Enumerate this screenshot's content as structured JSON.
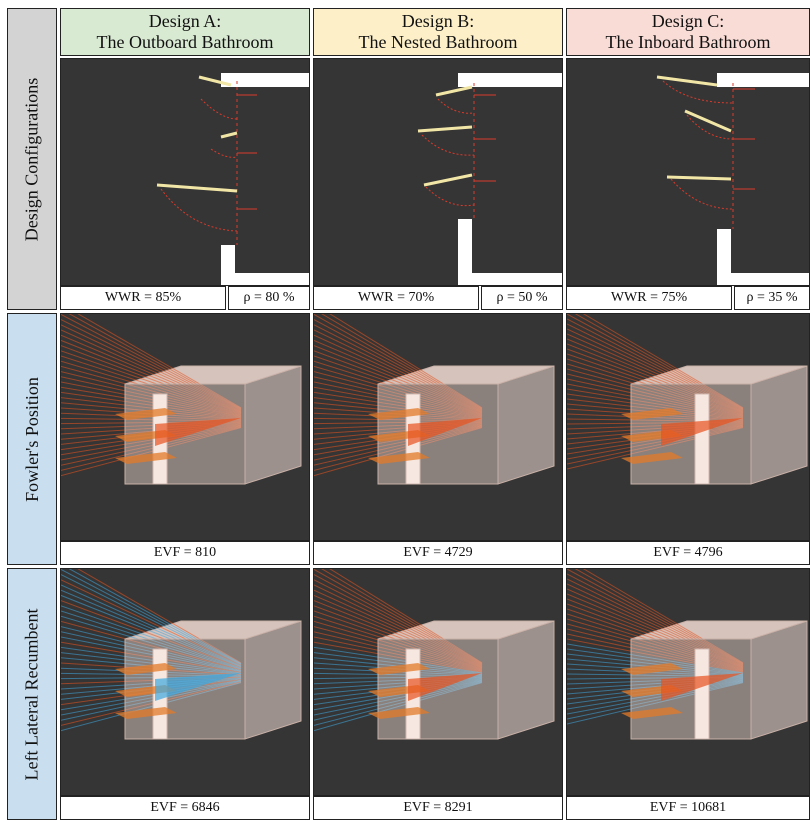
{
  "columns": [
    {
      "line1": "Design A:",
      "line2": "The Outboard Bathroom",
      "color": "#d9ead3"
    },
    {
      "line1": "Design B:",
      "line2": "The Nested Bathroom",
      "color": "#fdf0c9"
    },
    {
      "line1": "Design C:",
      "line2": "The Inboard Bathroom",
      "color": "#f9dcd6"
    }
  ],
  "rows": [
    {
      "label": "Design Configurations",
      "color": "#d3d3d3"
    },
    {
      "label": "Fowler's Position",
      "color": "#c9dff0"
    },
    {
      "label": "Left Lateral Recumbent",
      "color": "#c9dff0"
    }
  ],
  "config_captions": [
    {
      "wwr": "WWR = 85%",
      "rho": "ρ = 80 %"
    },
    {
      "wwr": "WWR = 70%",
      "rho": "ρ = 50 %"
    },
    {
      "wwr": "WWR = 75%",
      "rho": "ρ = 35 %"
    }
  ],
  "fowler_captions": [
    "EVF = 810",
    "EVF = 4729",
    "EVF = 4796"
  ],
  "lateral_captions": [
    "EVF = 6846",
    "EVF = 8291",
    "EVF = 10681"
  ],
  "colors": {
    "panel_bg": "#353535",
    "ray_warm": "#e8531f",
    "ray_cool": "#3fa8e0",
    "louver": "#f2e6a6",
    "dimension": "#d93a2b",
    "box": "#f1dcd3"
  }
}
